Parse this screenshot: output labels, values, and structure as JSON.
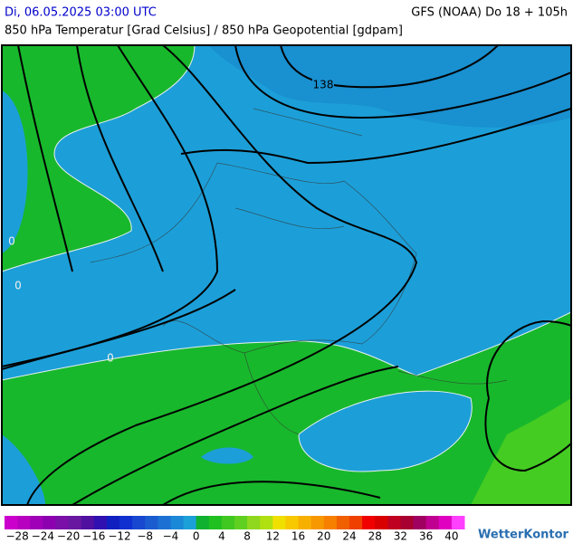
{
  "header": {
    "date": "Di, 06.05.2025 03:00 UTC",
    "model": "GFS (NOAA) Do 18 + 105h",
    "subtitle": "850 hPa Temperatur [Grad Celsius] / 850 hPa Geopotential [gdpam]"
  },
  "map": {
    "contour_labels": [
      "138",
      "0",
      "0",
      "0"
    ]
  },
  "colorbar": {
    "range": [
      -30,
      42
    ],
    "colors": [
      "#cc00cc",
      "#b800c0",
      "#a000b8",
      "#8c00b0",
      "#7a10a8",
      "#6818a0",
      "#5010a0",
      "#3010b0",
      "#1020c0",
      "#1030d0",
      "#1848d0",
      "#1a5cd0",
      "#1c70d4",
      "#1c88d8",
      "#1ca0d8",
      "#10b030",
      "#20c020",
      "#40c820",
      "#60d020",
      "#90d820",
      "#b0e010",
      "#f0e000",
      "#f8c800",
      "#f8b000",
      "#f89800",
      "#f88000",
      "#f06000",
      "#f04000",
      "#f00000",
      "#d80000",
      "#c00020",
      "#a80030",
      "#a00060",
      "#c00090",
      "#e000c0",
      "#ff40ff"
    ],
    "ticks": [
      {
        "value": -28,
        "label": "−28"
      },
      {
        "value": -24,
        "label": "−24"
      },
      {
        "value": -20,
        "label": "−20"
      },
      {
        "value": -16,
        "label": "−16"
      },
      {
        "value": -12,
        "label": "−12"
      },
      {
        "value": -8,
        "label": "−8"
      },
      {
        "value": -4,
        "label": "−4"
      },
      0,
      4,
      8,
      12,
      16,
      20,
      24,
      28,
      32,
      36,
      40
    ]
  },
  "brand": "WetterKontor"
}
